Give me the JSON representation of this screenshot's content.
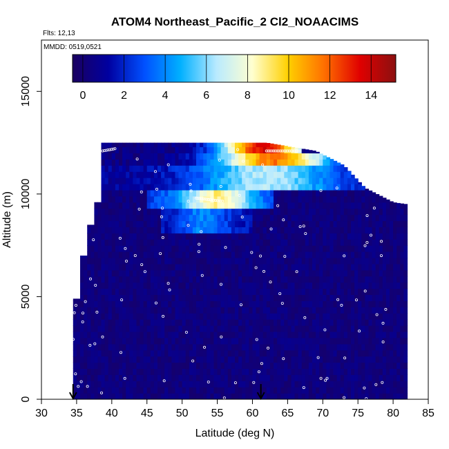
{
  "chart_data": {
    "type": "heatmap",
    "title": "ATOM4 Northeast_Pacific_2 Cl2_NOAACIMS",
    "flights_text": "Flts: 12,13",
    "date_text": "MMDD: 0519,0521",
    "xlabel": "Latitude (deg N)",
    "ylabel": "Altitude (m)",
    "xlim": [
      30,
      85
    ],
    "ylim": [
      0,
      17500
    ],
    "x_ticks": [
      "30",
      "35",
      "40",
      "45",
      "50",
      "55",
      "60",
      "65",
      "70",
      "75",
      "80",
      "85"
    ],
    "y_ticks": [
      "0",
      "5000",
      "10000",
      "15000"
    ],
    "colorbar": {
      "range": [
        -0.5,
        15.2
      ],
      "ticks": [
        "0",
        "2",
        "4",
        "6",
        "8",
        "10",
        "12",
        "14"
      ],
      "colors": [
        "#1a0060",
        "#0000a0",
        "#0050ff",
        "#00b0ff",
        "#b8eaff",
        "#ffffd0",
        "#ffd000",
        "#ff7000",
        "#e00000",
        "#8b1010"
      ]
    },
    "background_value": 0.3,
    "column_profile": [
      {
        "lat": 34.5,
        "top": 4900
      },
      {
        "lat": 35.5,
        "top": 7000
      },
      {
        "lat": 36.5,
        "top": 8500
      },
      {
        "lat": 37.5,
        "top": 9600
      },
      {
        "lat": 38.5,
        "top": 12500
      },
      {
        "lat": 47,
        "top": 12500
      },
      {
        "lat": 55,
        "top": 12500
      },
      {
        "lat": 62,
        "top": 12500
      },
      {
        "lat": 69,
        "top": 12100
      },
      {
        "lat": 73,
        "top": 11400
      },
      {
        "lat": 76,
        "top": 10300
      },
      {
        "lat": 80,
        "top": 9600
      },
      {
        "lat": 82,
        "top": 9500
      }
    ],
    "enhanced_bands": [
      {
        "lat_start": 38.5,
        "lat_end": 67,
        "alt_start": 11900,
        "alt_end": 12500,
        "peak": 13.5,
        "peak_lat": 61.5,
        "spread": 6,
        "base": 0.5
      },
      {
        "lat_start": 38.5,
        "lat_end": 73,
        "alt_start": 11300,
        "alt_end": 11900,
        "peak": 11.5,
        "peak_lat": 63,
        "spread": 8,
        "base": 0.5
      },
      {
        "lat_start": 38,
        "lat_end": 76,
        "alt_start": 10300,
        "alt_end": 11300,
        "peak": 6.5,
        "peak_lat": 62,
        "spread": 10,
        "base": 1.0
      },
      {
        "lat_start": 45,
        "lat_end": 63,
        "alt_start": 9300,
        "alt_end": 10300,
        "peak": 8.8,
        "peak_lat": 55,
        "spread": 5,
        "base": 2.5
      },
      {
        "lat_start": 47,
        "lat_end": 60,
        "alt_start": 8200,
        "alt_end": 9300,
        "peak": 4.0,
        "peak_lat": 53,
        "spread": 3.5,
        "base": 1.5
      }
    ],
    "markers": [
      {
        "lat": 34.5,
        "label": "flight-start"
      },
      {
        "lat": 61.2,
        "label": "flight-end"
      }
    ]
  }
}
